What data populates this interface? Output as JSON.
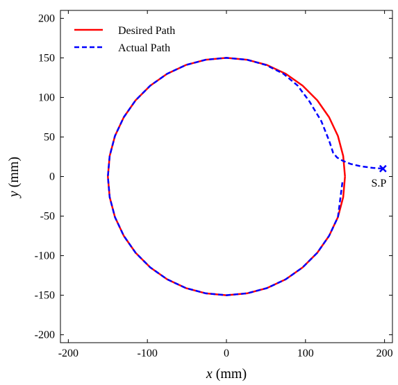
{
  "chart_data": {
    "type": "line",
    "title": "",
    "xlabel": {
      "var": "x",
      "unit": " (mm)"
    },
    "ylabel": {
      "var": "y",
      "unit": " (mm)"
    },
    "xlim": [
      -210,
      210
    ],
    "ylim": [
      -210,
      210
    ],
    "xticks": [
      -200,
      -100,
      0,
      100,
      200
    ],
    "yticks": [
      -200,
      -150,
      -100,
      -50,
      0,
      50,
      100,
      150,
      200
    ],
    "grid": false,
    "legend_position": "top-left",
    "series": [
      {
        "name": "Desired Path",
        "color": "#ff0000",
        "style": "solid",
        "x": [
          150,
          147.7,
          141,
          129.9,
          114.9,
          96.4,
          75,
          51.3,
          26,
          0,
          -26,
          -51.3,
          -75,
          -96.4,
          -114.9,
          -129.9,
          -141,
          -147.7,
          -150,
          -147.7,
          -141,
          -129.9,
          -114.9,
          -96.4,
          -75,
          -51.3,
          -26,
          0,
          26,
          51.3,
          75,
          96.4,
          114.9,
          129.9,
          141,
          147.7,
          150
        ],
        "y": [
          0,
          26,
          51.3,
          75,
          96.4,
          114.9,
          129.9,
          141,
          147.7,
          150,
          147.7,
          141,
          129.9,
          114.9,
          96.4,
          75,
          51.3,
          26,
          0,
          -26,
          -51.3,
          -75,
          -96.4,
          -114.9,
          -129.9,
          -141,
          -147.7,
          -150,
          -147.7,
          -141,
          -129.9,
          -114.9,
          -96.4,
          -75,
          -51.3,
          -26,
          0
        ]
      },
      {
        "name": "Actual Path",
        "color": "#0000ff",
        "style": "dashed",
        "x": [
          198,
          185,
          170,
          157,
          147,
          140,
          135,
          130,
          120,
          105,
          90,
          72,
          50,
          26,
          0,
          -26,
          -51.3,
          -75,
          -96.4,
          -114.9,
          -129.9,
          -141,
          -147.7,
          -150,
          -147.7,
          -141,
          -129.9,
          -114.9,
          -96.4,
          -75,
          -51.3,
          -26,
          0,
          26,
          51.3,
          75,
          96.4,
          114.9,
          129.9,
          141,
          147
        ],
        "y": [
          10,
          11,
          13,
          16,
          20,
          24,
          30,
          45,
          70,
          95,
          115,
          130,
          141,
          147.7,
          150,
          147.7,
          141,
          129.9,
          114.9,
          96.4,
          75,
          51.3,
          26,
          0,
          -26,
          -51.3,
          -75,
          -96.4,
          -114.9,
          -129.9,
          -141,
          -147.7,
          -150,
          -147.7,
          -141,
          -129.9,
          -114.9,
          -96.4,
          -75,
          -51.3,
          -5
        ]
      }
    ],
    "annotations": [
      {
        "text": "S.P",
        "x": 198,
        "y": 10,
        "marker": "x",
        "color": "#0000ff"
      }
    ]
  }
}
